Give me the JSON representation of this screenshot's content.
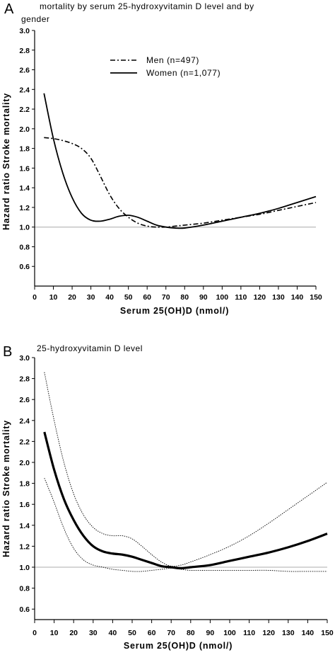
{
  "chart_data": [
    {
      "panel_label": "A",
      "type": "line",
      "title_lines": [
        "mortality by serum 25-hydroxyvitamin D level and by",
        "gender"
      ],
      "xlabel": "Serum 25(OH)D (nmol/)",
      "ylabel": "Hazard ratio Stroke mortality",
      "xlim": [
        0,
        150
      ],
      "ylim": [
        0.4,
        3.0
      ],
      "x_ticks": [
        0,
        10,
        20,
        30,
        40,
        50,
        60,
        70,
        80,
        90,
        100,
        110,
        120,
        130,
        140,
        150
      ],
      "y_ticks": [
        0.6,
        0.8,
        1.0,
        1.2,
        1.4,
        1.6,
        1.8,
        2.0,
        2.2,
        2.4,
        2.6,
        2.8,
        3.0
      ],
      "y_tick_labels": [
        "0.6",
        "0.8",
        "1.0",
        "1.2",
        "1.4",
        "1.6",
        "1.8",
        "2.0",
        "2.2",
        "2.4",
        "2.6",
        "2.8",
        "3.0"
      ],
      "reference_line": 1.0,
      "legend_position": "top-center",
      "series": [
        {
          "name": "Men (n=497)",
          "style": "dashdot",
          "x": [
            5,
            10,
            15,
            20,
            25,
            30,
            35,
            40,
            45,
            50,
            55,
            60,
            65,
            70,
            75,
            80,
            90,
            100,
            110,
            120,
            130,
            140,
            150
          ],
          "y": [
            1.91,
            1.9,
            1.88,
            1.85,
            1.8,
            1.7,
            1.52,
            1.33,
            1.19,
            1.1,
            1.04,
            1.01,
            1.0,
            1.0,
            1.01,
            1.02,
            1.04,
            1.07,
            1.1,
            1.13,
            1.17,
            1.21,
            1.25
          ]
        },
        {
          "name": "Women (n=1,077)",
          "style": "solid",
          "x": [
            5,
            10,
            15,
            20,
            25,
            30,
            35,
            40,
            45,
            50,
            55,
            60,
            65,
            70,
            75,
            80,
            90,
            100,
            110,
            120,
            130,
            140,
            150
          ],
          "y": [
            2.36,
            1.9,
            1.55,
            1.3,
            1.14,
            1.07,
            1.06,
            1.08,
            1.11,
            1.12,
            1.1,
            1.06,
            1.02,
            1.0,
            0.99,
            0.99,
            1.02,
            1.06,
            1.1,
            1.14,
            1.19,
            1.25,
            1.31
          ]
        }
      ]
    },
    {
      "panel_label": "B",
      "type": "line",
      "title_lines": [
        "25-hydroxyvitamin D level"
      ],
      "xlabel": "Serum 25(OH)D (nmol/)",
      "ylabel": "Hazard ratio Stroke mortality",
      "xlim": [
        0,
        150
      ],
      "ylim": [
        0.5,
        3.0
      ],
      "x_ticks": [
        0,
        10,
        20,
        30,
        40,
        50,
        60,
        70,
        80,
        90,
        100,
        110,
        120,
        130,
        140,
        150
      ],
      "y_ticks": [
        0.6,
        0.8,
        1.0,
        1.2,
        1.4,
        1.6,
        1.8,
        2.0,
        2.2,
        2.4,
        2.6,
        2.8,
        3.0
      ],
      "y_tick_labels": [
        "0.6",
        "0.8",
        "1.0",
        "1.2",
        "1.4",
        "1.6",
        "1.8",
        "2.0",
        "2.2",
        "2.4",
        "2.6",
        "2.8",
        "3.0"
      ],
      "reference_line": 1.0,
      "series": [
        {
          "style": "thick",
          "x": [
            5,
            10,
            15,
            20,
            25,
            30,
            35,
            40,
            45,
            50,
            55,
            60,
            65,
            70,
            75,
            80,
            90,
            100,
            110,
            120,
            130,
            140,
            150
          ],
          "y": [
            2.29,
            1.93,
            1.65,
            1.45,
            1.3,
            1.2,
            1.15,
            1.13,
            1.12,
            1.1,
            1.07,
            1.04,
            1.01,
            1.0,
            0.99,
            1.0,
            1.02,
            1.06,
            1.1,
            1.14,
            1.19,
            1.25,
            1.32
          ]
        },
        {
          "style": "dotted",
          "x": [
            5,
            10,
            15,
            20,
            25,
            30,
            35,
            40,
            45,
            50,
            55,
            60,
            65,
            70,
            75,
            80,
            90,
            100,
            110,
            120,
            130,
            140,
            150
          ],
          "y": [
            2.86,
            2.4,
            2.0,
            1.7,
            1.5,
            1.38,
            1.32,
            1.3,
            1.3,
            1.27,
            1.2,
            1.12,
            1.05,
            1.01,
            1.02,
            1.05,
            1.12,
            1.2,
            1.3,
            1.42,
            1.55,
            1.68,
            1.81
          ]
        },
        {
          "style": "dotted",
          "x": [
            5,
            10,
            15,
            20,
            25,
            30,
            35,
            40,
            45,
            50,
            55,
            60,
            65,
            70,
            75,
            80,
            90,
            100,
            110,
            120,
            130,
            140,
            150
          ],
          "y": [
            1.85,
            1.62,
            1.37,
            1.18,
            1.07,
            1.02,
            1.0,
            0.98,
            0.97,
            0.96,
            0.96,
            0.97,
            0.98,
            0.99,
            0.98,
            0.97,
            0.97,
            0.97,
            0.97,
            0.97,
            0.96,
            0.96,
            0.96
          ]
        }
      ]
    }
  ]
}
